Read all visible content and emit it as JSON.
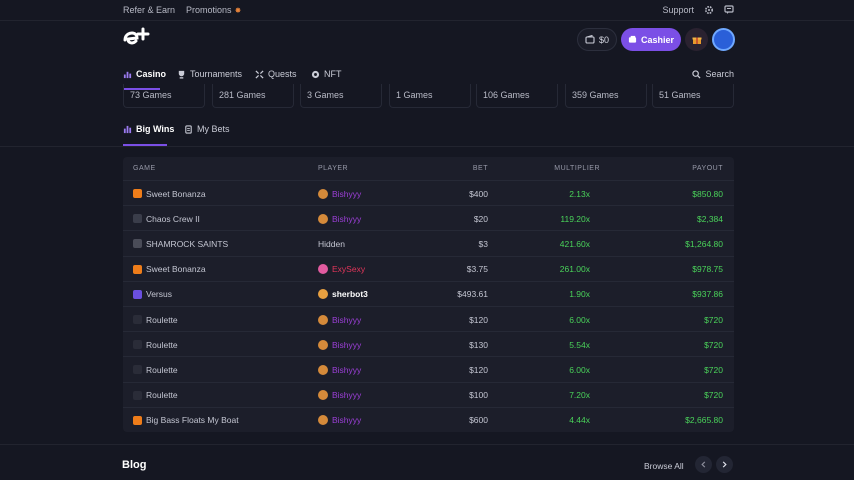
{
  "topbar": {
    "refer": "Refer & Earn",
    "promotions": "Promotions",
    "support": "Support"
  },
  "header": {
    "balance": "$0",
    "cashier": "Cashier"
  },
  "nav": {
    "casino": "Casino",
    "tournaments": "Tournaments",
    "quests": "Quests",
    "nft": "NFT",
    "search": "Search"
  },
  "counts": [
    "73 Games",
    "281 Games",
    "3 Games",
    "1 Games",
    "106 Games",
    "359 Games",
    "51 Games"
  ],
  "tabs": {
    "big_wins": "Big Wins",
    "my_bets": "My Bets"
  },
  "table": {
    "headers": {
      "game": "GAME",
      "player": "PLAYER",
      "bet": "BET",
      "multiplier": "MULTIPLIER",
      "payout": "PAYOUT"
    },
    "rows": [
      {
        "game": "Sweet Bonanza",
        "game_icon": "sweet-bonanza-icon",
        "player": "Bishyyy",
        "bet": "$400",
        "multiplier": "2.13x",
        "payout": "$850.80"
      },
      {
        "game": "Chaos Crew II",
        "game_icon": "chaos-crew-icon",
        "player": "Bishyyy",
        "bet": "$20",
        "multiplier": "119.20x",
        "payout": "$2,384"
      },
      {
        "game": "SHAMROCK SAINTS",
        "game_icon": "shamrock-saints-icon",
        "player": "Hidden",
        "bet": "$3",
        "multiplier": "421.60x",
        "payout": "$1,264.80"
      },
      {
        "game": "Sweet Bonanza",
        "game_icon": "sweet-bonanza-icon",
        "player": "ExySexy",
        "bet": "$3.75",
        "multiplier": "261.00x",
        "payout": "$978.75"
      },
      {
        "game": "Versus",
        "game_icon": "versus-icon",
        "player": "sherbot3",
        "bet": "$493.61",
        "multiplier": "1.90x",
        "payout": "$937.86"
      },
      {
        "game": "Roulette",
        "game_icon": "roulette-icon",
        "player": "Bishyyy",
        "bet": "$120",
        "multiplier": "6.00x",
        "payout": "$720"
      },
      {
        "game": "Roulette",
        "game_icon": "roulette-icon",
        "player": "Bishyyy",
        "bet": "$130",
        "multiplier": "5.54x",
        "payout": "$720"
      },
      {
        "game": "Roulette",
        "game_icon": "roulette-icon",
        "player": "Bishyyy",
        "bet": "$120",
        "multiplier": "6.00x",
        "payout": "$720"
      },
      {
        "game": "Roulette",
        "game_icon": "roulette-icon",
        "player": "Bishyyy",
        "bet": "$100",
        "multiplier": "7.20x",
        "payout": "$720"
      },
      {
        "game": "Big Bass Floats My Boat",
        "game_icon": "big-bass-icon",
        "player": "Bishyyy",
        "bet": "$600",
        "multiplier": "4.44x",
        "payout": "$2,665.80"
      }
    ]
  },
  "blog": {
    "title": "Blog",
    "browse_all": "Browse All"
  },
  "colors": {
    "accent": "#7b4fe6",
    "win": "#4ad35a",
    "player_purple": "#9b3fd6",
    "player_red": "#e0355a",
    "background": "#151722"
  }
}
